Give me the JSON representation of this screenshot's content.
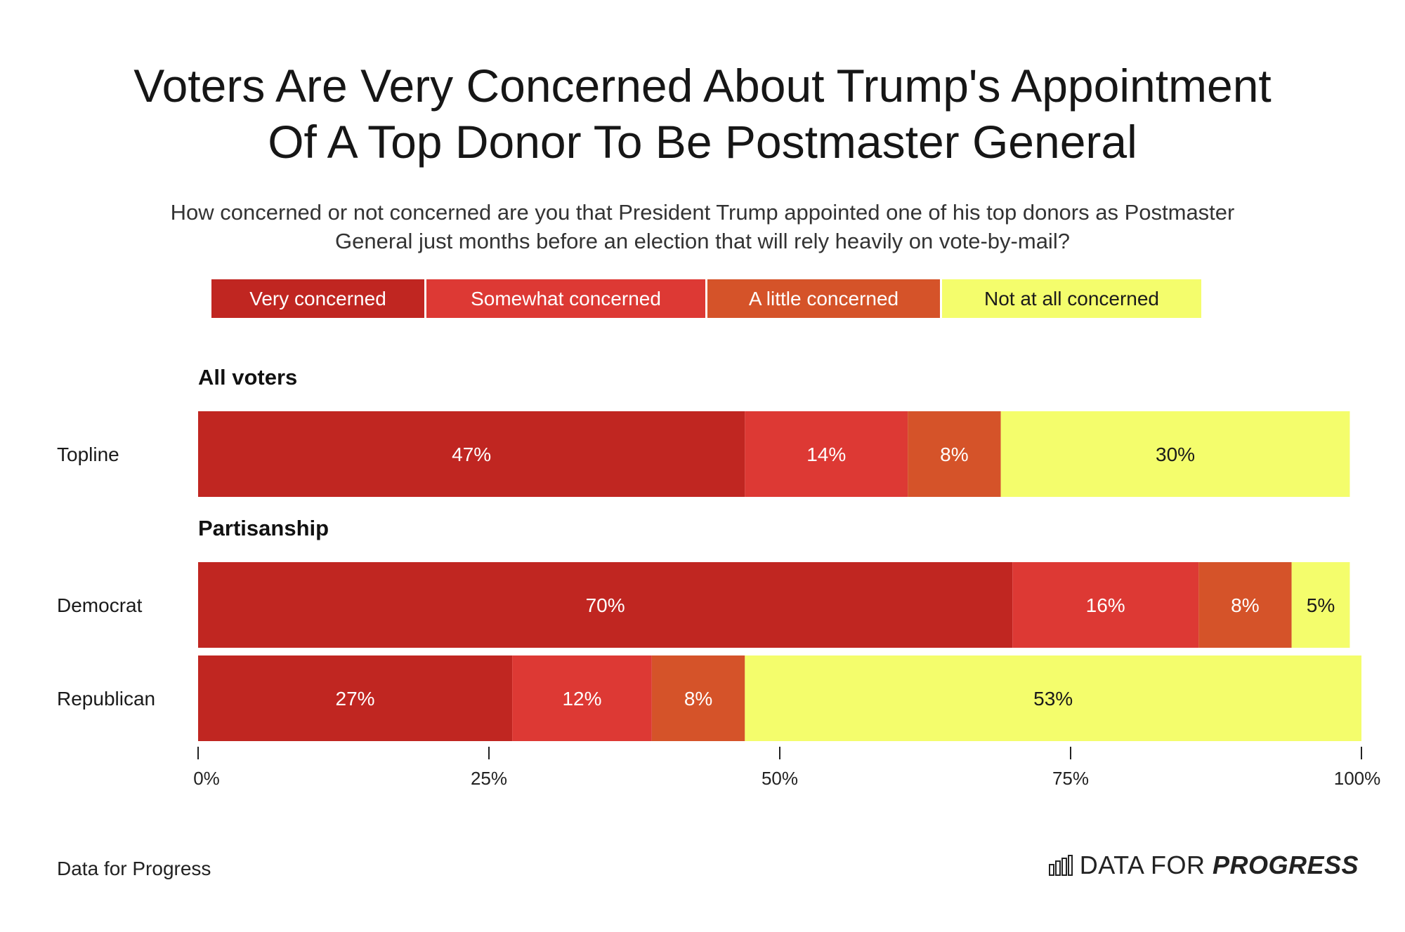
{
  "title_line1": "Voters Are Very Concerned About Trump's Appointment",
  "title_line2": "Of A Top Donor To Be Postmaster General",
  "subtitle_line1": "How concerned or not concerned are you that President Trump appointed one of his top donors as Postmaster",
  "subtitle_line2": "General just months before an election that will rely heavily on vote-by-mail?",
  "source": "Data for Progress",
  "brand": {
    "light": "DATA FOR ",
    "bold": "PROGRESS",
    "icon": "bar-chart-logo-icon"
  },
  "colors": {
    "very": "#c02621",
    "somewhat": "#dd3934",
    "little": "#d55329",
    "not": "#f4fd6c"
  },
  "chart_data": {
    "type": "bar",
    "orientation": "horizontal",
    "stacked": true,
    "legend": [
      {
        "label": "Very concerned",
        "key": "very",
        "text_color": "#ffffff"
      },
      {
        "label": "Somewhat concerned",
        "key": "somewhat",
        "text_color": "#ffffff"
      },
      {
        "label": "A little concerned",
        "key": "little",
        "text_color": "#ffffff"
      },
      {
        "label": "Not at all concerned",
        "key": "not",
        "text_color": "#1a1a1a"
      }
    ],
    "groups": [
      {
        "name": "All voters",
        "rows": [
          {
            "label": "Topline",
            "values": [
              47,
              14,
              8,
              30
            ]
          }
        ]
      },
      {
        "name": "Partisanship",
        "rows": [
          {
            "label": "Democrat",
            "values": [
              70,
              16,
              8,
              5
            ]
          },
          {
            "label": "Republican",
            "values": [
              27,
              12,
              8,
              53
            ]
          }
        ]
      }
    ],
    "xlim": [
      0,
      100
    ],
    "xticks": [
      0,
      25,
      50,
      75,
      100
    ],
    "xtick_labels": [
      "0%",
      "25%",
      "50%",
      "75%",
      "100%"
    ],
    "legend_position": "top"
  }
}
